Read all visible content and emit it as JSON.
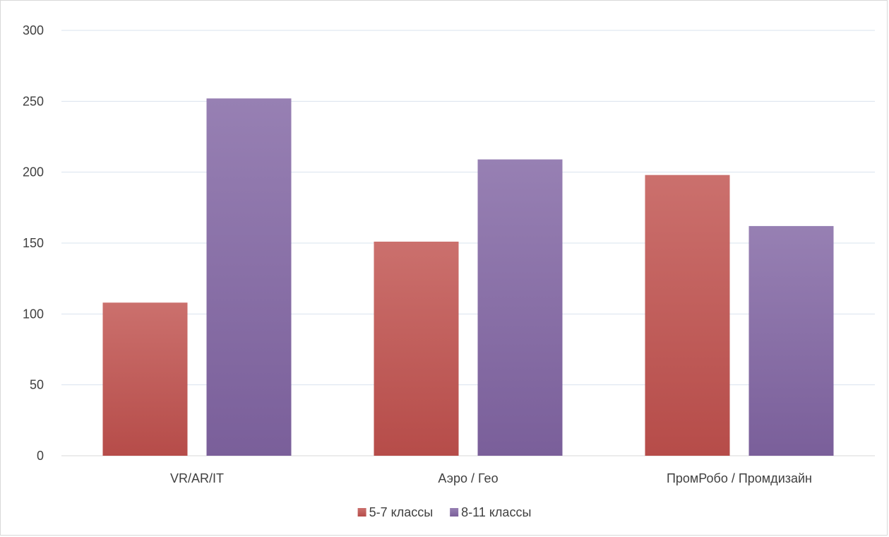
{
  "chart_data": {
    "type": "bar",
    "title": "",
    "xlabel": "",
    "ylabel": "",
    "categories": [
      "VR/AR/IT",
      "Аэро / Гео",
      "ПромРобо / Промдизайн"
    ],
    "series": [
      {
        "name": "5-7 классы",
        "values": [
          108,
          151,
          198
        ],
        "color": "#c0504d"
      },
      {
        "name": "8-11 классы",
        "values": [
          252,
          209,
          162
        ],
        "color": "#8064a2"
      }
    ],
    "ylim": [
      0,
      300
    ],
    "yticks": [
      0,
      50,
      100,
      150,
      200,
      250,
      300
    ],
    "grid": true,
    "legend_position": "bottom"
  }
}
